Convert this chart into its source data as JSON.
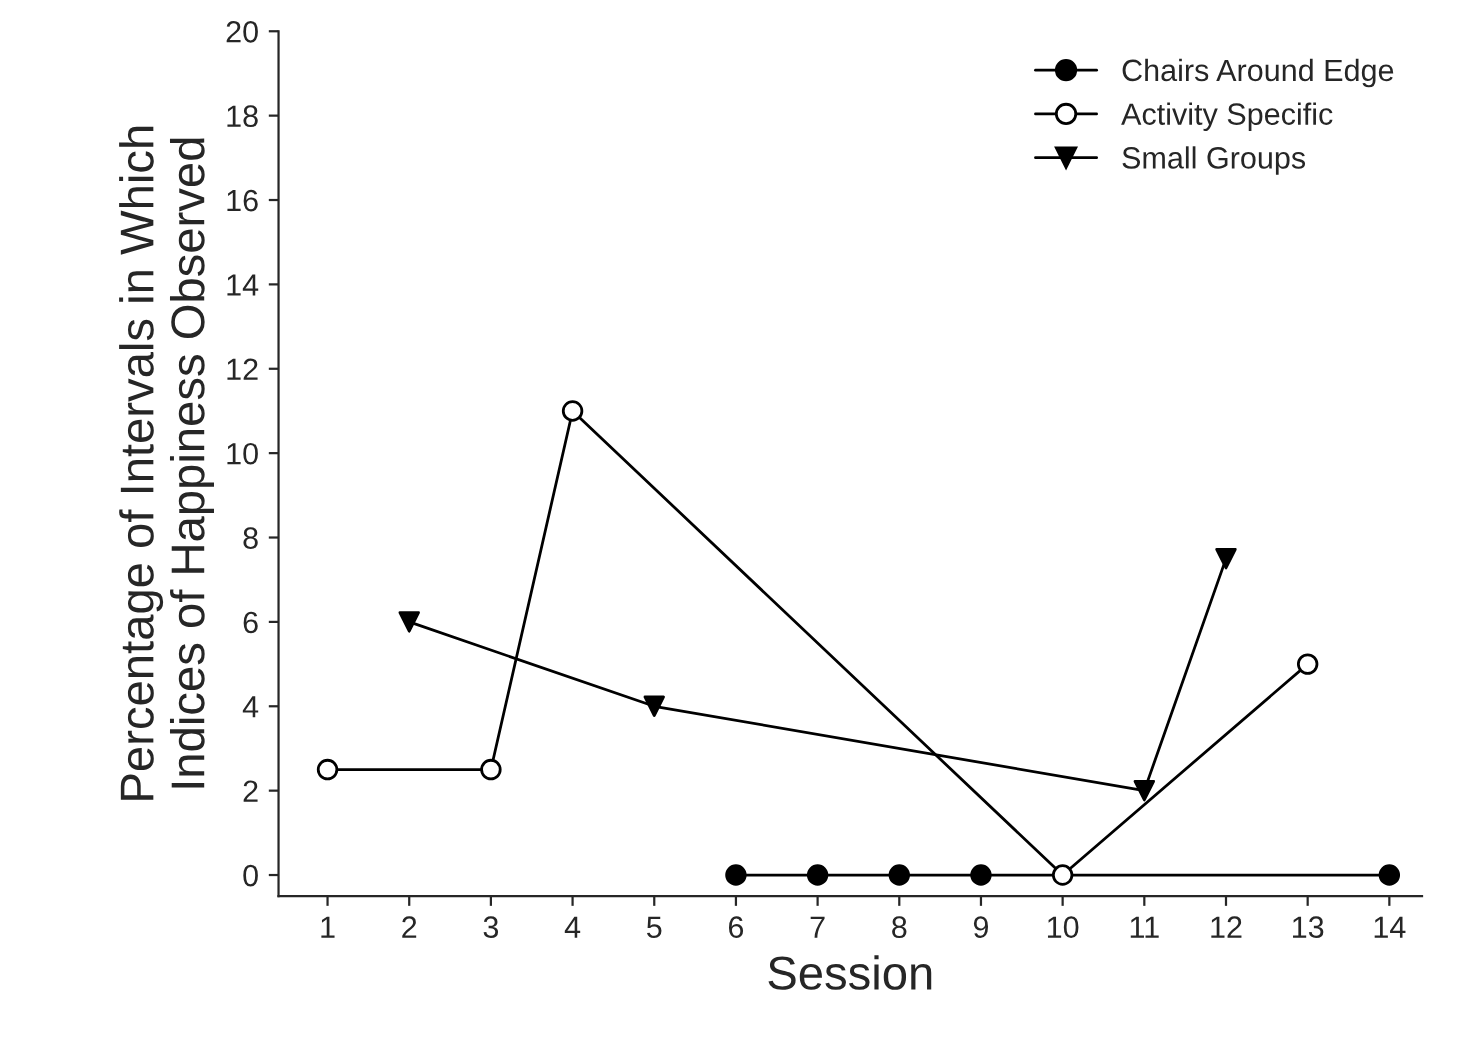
{
  "chart_data": {
    "type": "line",
    "xlabel": "Session",
    "ylabel": "Percentage of Intervals in Which\nIndices of Happiness Observed",
    "xlim": [
      0.4,
      14.4
    ],
    "xticks": [
      1,
      2,
      3,
      4,
      5,
      6,
      7,
      8,
      9,
      10,
      11,
      12,
      13,
      14
    ],
    "ylim": [
      -0.5,
      20
    ],
    "yticks": [
      0,
      2,
      4,
      6,
      8,
      10,
      12,
      14,
      16,
      18,
      20
    ],
    "grid": false,
    "legend": "top right",
    "line_style": "solid",
    "series": [
      {
        "name": "Chairs Around Edge",
        "color": "#000000",
        "marker": "circle",
        "x": [
          6,
          7,
          8,
          9,
          14
        ],
        "values": [
          0,
          0,
          0,
          0,
          0
        ]
      },
      {
        "name": "Activity Specific",
        "color": "#000000",
        "marker": "circle",
        "colors": [
          "#ffffff",
          "#ffffff",
          "#ffffff",
          "#ffffff",
          "#ffffff"
        ],
        "x": [
          1,
          3,
          4,
          10,
          13
        ],
        "values": [
          2.5,
          2.5,
          11,
          0,
          5
        ]
      },
      {
        "name": "Small Groups",
        "color": "#000000",
        "marker": "triangle",
        "x": [
          2,
          5,
          11,
          12
        ],
        "values": [
          6,
          4,
          2,
          7.5
        ]
      }
    ]
  }
}
